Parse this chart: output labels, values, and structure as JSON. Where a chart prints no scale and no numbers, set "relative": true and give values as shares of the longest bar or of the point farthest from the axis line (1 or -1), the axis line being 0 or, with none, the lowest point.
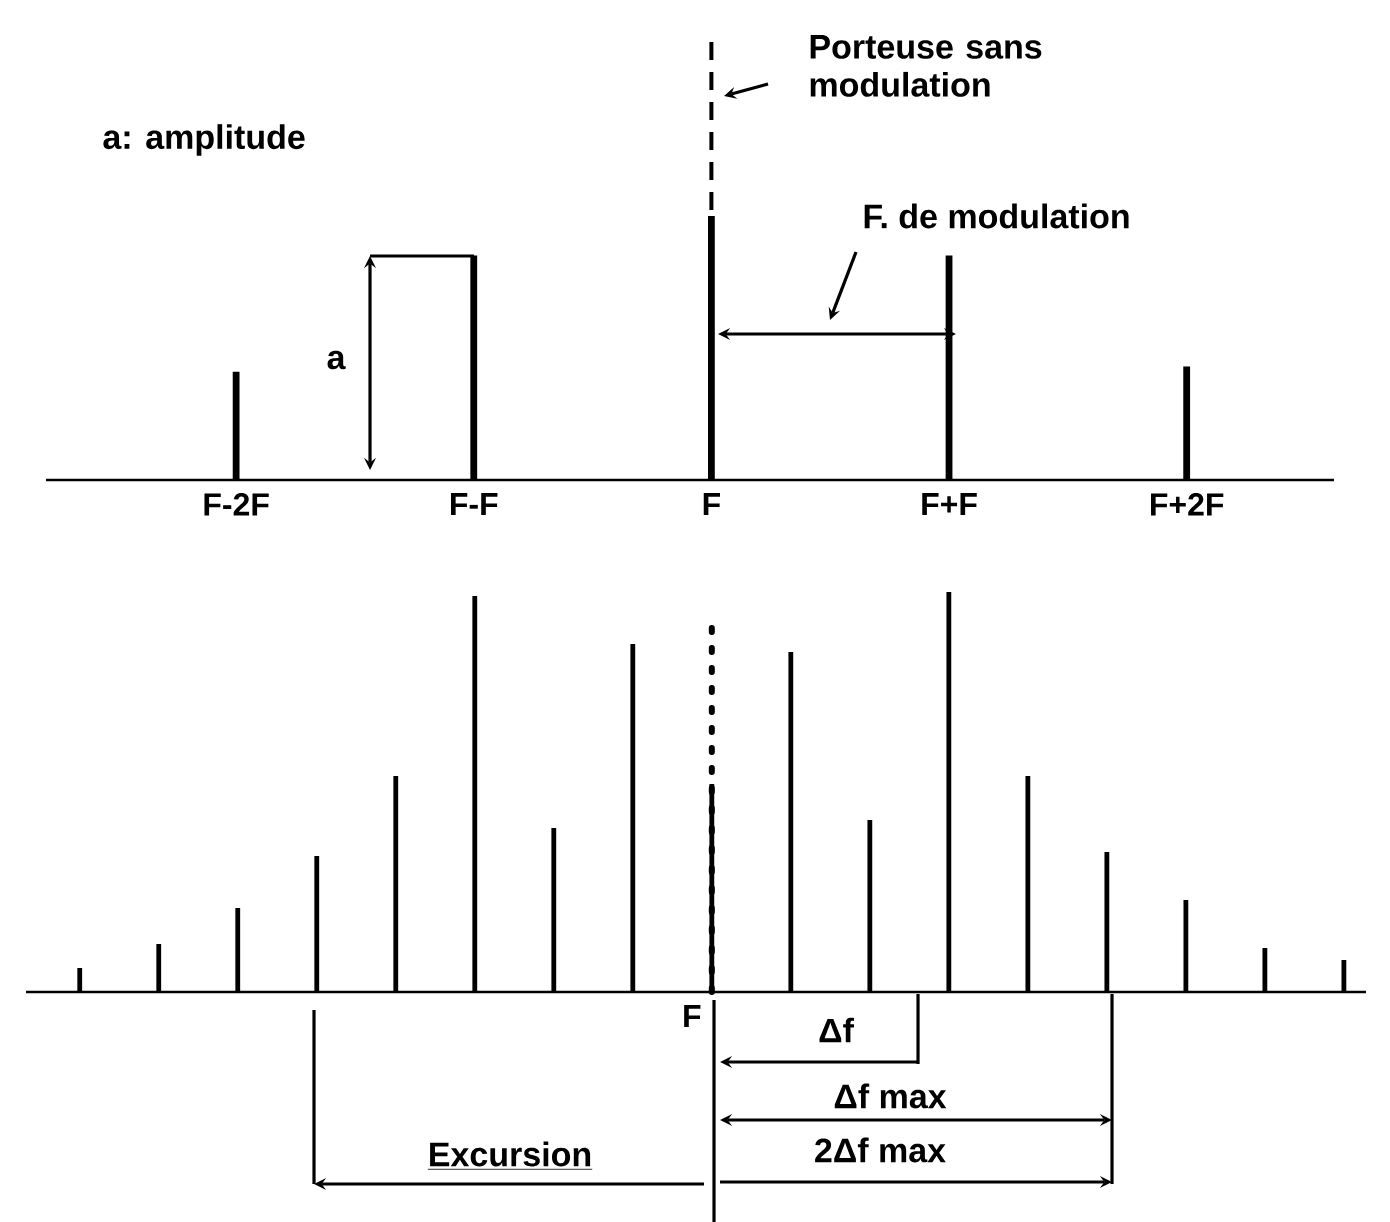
{
  "chart_data": [
    {
      "type": "bar",
      "relative": true,
      "color": "#000000",
      "categories": [
        "F-2F",
        "F-F",
        "F",
        "F+F",
        "F+2F"
      ],
      "values": [
        0.41,
        0.85,
        1,
        0.85,
        0.43
      ],
      "ref_lines": [
        {
          "axis": "x",
          "value": "F",
          "line_style": "dashed"
        }
      ],
      "annotations": [
        "a: amplitude",
        "Porteuse sans modulation",
        "F. de modulation",
        "a"
      ]
    },
    {
      "type": "bar",
      "relative": true,
      "color": "#000000",
      "categories": [
        null,
        null,
        null,
        null,
        null,
        null,
        null,
        null,
        "F",
        null,
        null,
        null,
        null,
        null,
        null,
        null,
        null
      ],
      "values": [
        0.06,
        0.12,
        0.21,
        0.34,
        0.54,
        0.99,
        0.41,
        0.87,
        0.52,
        0.85,
        0.43,
        1,
        0.54,
        0.35,
        0.23,
        0.11,
        0.08
      ],
      "ref_lines": [
        {
          "axis": "x",
          "value": "F",
          "line_style": "dotted"
        }
      ],
      "annotations": [
        "Δf",
        "Δf max",
        "2Δf max",
        "Excursion"
      ]
    }
  ]
}
